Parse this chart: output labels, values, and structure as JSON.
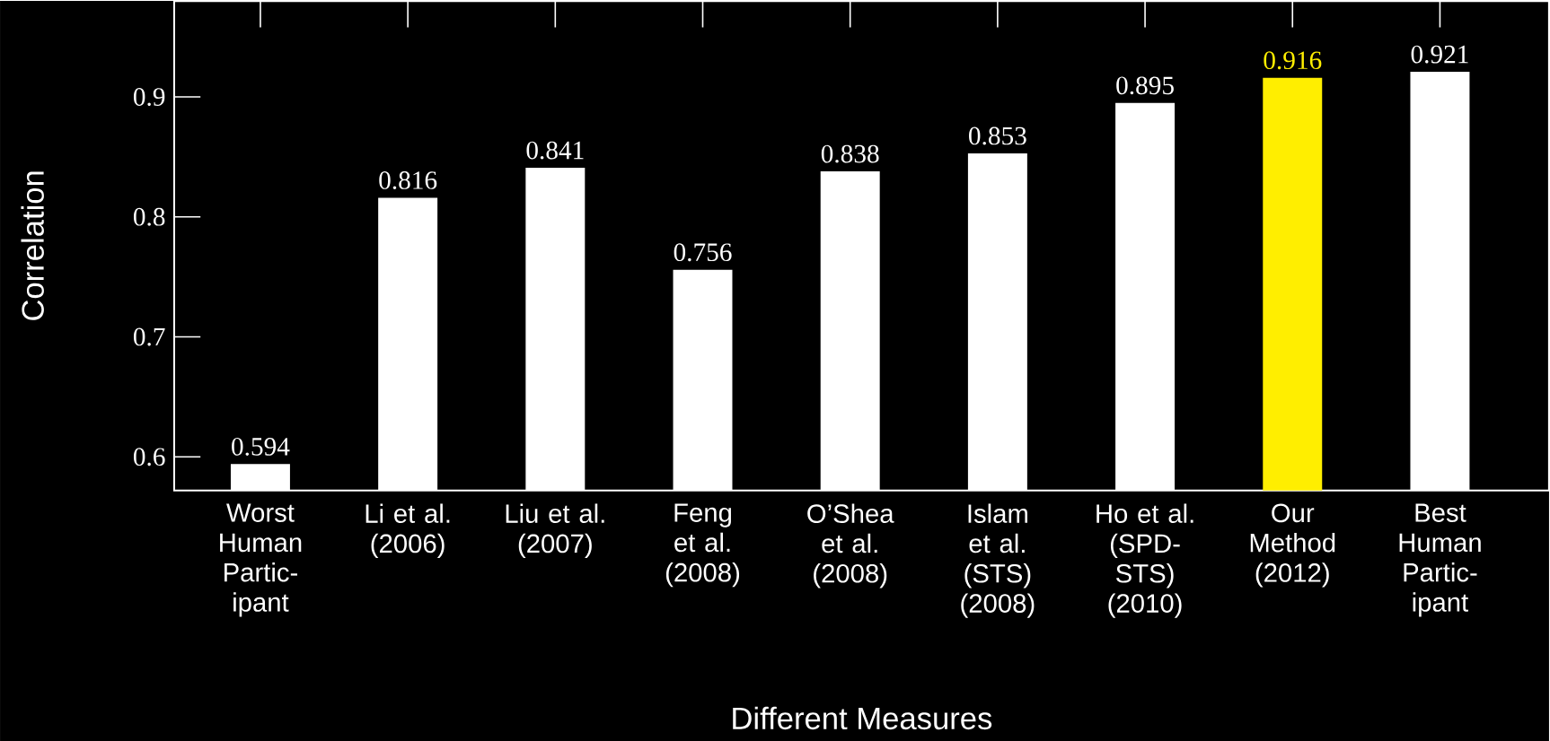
{
  "chart_data": {
    "type": "bar",
    "xlabel": "Different Measures",
    "ylabel": "Correlation",
    "categories": [
      "Worst Human Partic-ipant",
      "Li et al. (2006)",
      "Liu et al. (2007)",
      "Feng et al. (2008)",
      "O’Shea et al. (2008)",
      "Islam et al. (STS) (2008)",
      "Ho et al. (SPD-STS) (2010)",
      "Our Method (2012)",
      "Best Human Partic-ipant"
    ],
    "values": [
      0.594,
      0.816,
      0.841,
      0.756,
      0.838,
      0.853,
      0.895,
      0.916,
      0.921
    ],
    "colors": [
      "#ffffff",
      "#ffffff",
      "#ffffff",
      "#ffffff",
      "#ffffff",
      "#ffffff",
      "#ffffff",
      "#ffee00",
      "#ffffff"
    ],
    "ylim": [
      0.572,
      0.98
    ],
    "yticks": [
      0.6,
      0.7,
      0.8,
      0.9
    ],
    "data_labels": true
  }
}
